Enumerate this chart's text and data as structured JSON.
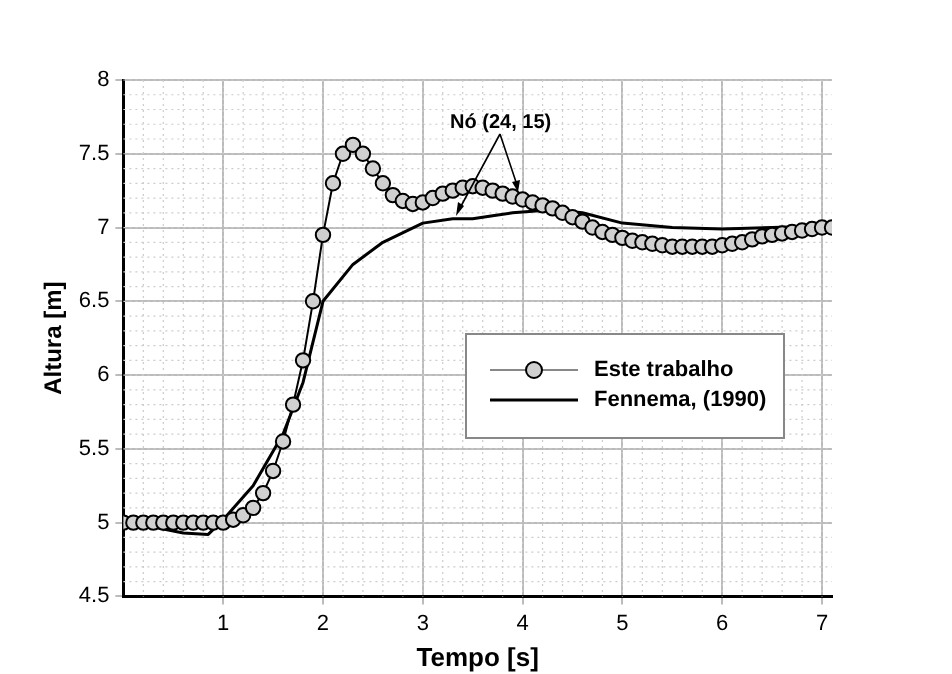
{
  "chart_data": {
    "type": "line",
    "xlabel": "Tempo [s]",
    "ylabel": "Altura [m]",
    "xlim": [
      0,
      7.1
    ],
    "ylim": [
      4.5,
      8
    ],
    "xticks": [
      1,
      2,
      3,
      4,
      5,
      6,
      7
    ],
    "yticks": [
      4.5,
      5,
      5.5,
      6,
      6.5,
      7,
      7.5,
      8
    ],
    "grid": true,
    "legend": "right",
    "annotations": [
      {
        "text": "Nó (24, 15)",
        "x": 3.92,
        "y": 7.24
      }
    ],
    "series": [
      {
        "name": "Este trabalho",
        "color": "#000000",
        "marker": "circle",
        "x": [
          0,
          0.1,
          0.2,
          0.3,
          0.4,
          0.5,
          0.6,
          0.7,
          0.8,
          0.9,
          1.0,
          1.1,
          1.2,
          1.3,
          1.4,
          1.5,
          1.6,
          1.7,
          1.8,
          1.9,
          2.0,
          2.1,
          2.2,
          2.3,
          2.4,
          2.5,
          2.6,
          2.7,
          2.8,
          2.9,
          3.0,
          3.1,
          3.2,
          3.3,
          3.4,
          3.5,
          3.6,
          3.7,
          3.8,
          3.9,
          4.0,
          4.1,
          4.2,
          4.3,
          4.4,
          4.5,
          4.6,
          4.7,
          4.8,
          4.9,
          5.0,
          5.1,
          5.2,
          5.3,
          5.4,
          5.5,
          5.6,
          5.7,
          5.8,
          5.9,
          6.0,
          6.1,
          6.2,
          6.3,
          6.4,
          6.5,
          6.6,
          6.7,
          6.8,
          6.9,
          7.0,
          7.1
        ],
        "values": [
          5.0,
          5.0,
          5.0,
          5.0,
          5.0,
          5.0,
          5.0,
          5.0,
          5.0,
          5.0,
          5.0,
          5.02,
          5.05,
          5.1,
          5.2,
          5.35,
          5.55,
          5.8,
          6.1,
          6.5,
          6.95,
          7.3,
          7.5,
          7.56,
          7.5,
          7.4,
          7.3,
          7.22,
          7.18,
          7.16,
          7.17,
          7.2,
          7.23,
          7.25,
          7.27,
          7.28,
          7.27,
          7.25,
          7.23,
          7.21,
          7.19,
          7.17,
          7.15,
          7.13,
          7.1,
          7.07,
          7.04,
          7.0,
          6.97,
          6.95,
          6.93,
          6.91,
          6.9,
          6.89,
          6.88,
          6.87,
          6.87,
          6.87,
          6.87,
          6.87,
          6.88,
          6.89,
          6.9,
          6.92,
          6.94,
          6.95,
          6.96,
          6.97,
          6.98,
          6.99,
          7.0,
          7.0
        ]
      },
      {
        "name": "Fennema, (1990)",
        "color": "#000000",
        "marker": "none",
        "x": [
          0,
          0.3,
          0.6,
          0.85,
          1.0,
          1.3,
          1.6,
          1.8,
          2.0,
          2.3,
          2.6,
          3.0,
          3.3,
          3.5,
          3.7,
          3.9,
          4.3,
          4.6,
          5.0,
          5.5,
          6.0,
          6.5,
          7.0,
          7.1
        ],
        "values": [
          5.0,
          4.97,
          4.93,
          4.92,
          5.02,
          5.25,
          5.6,
          5.95,
          6.5,
          6.75,
          6.9,
          7.03,
          7.06,
          7.06,
          7.08,
          7.1,
          7.12,
          7.1,
          7.03,
          7.0,
          6.99,
          7.0,
          7.01,
          7.01
        ]
      }
    ]
  }
}
